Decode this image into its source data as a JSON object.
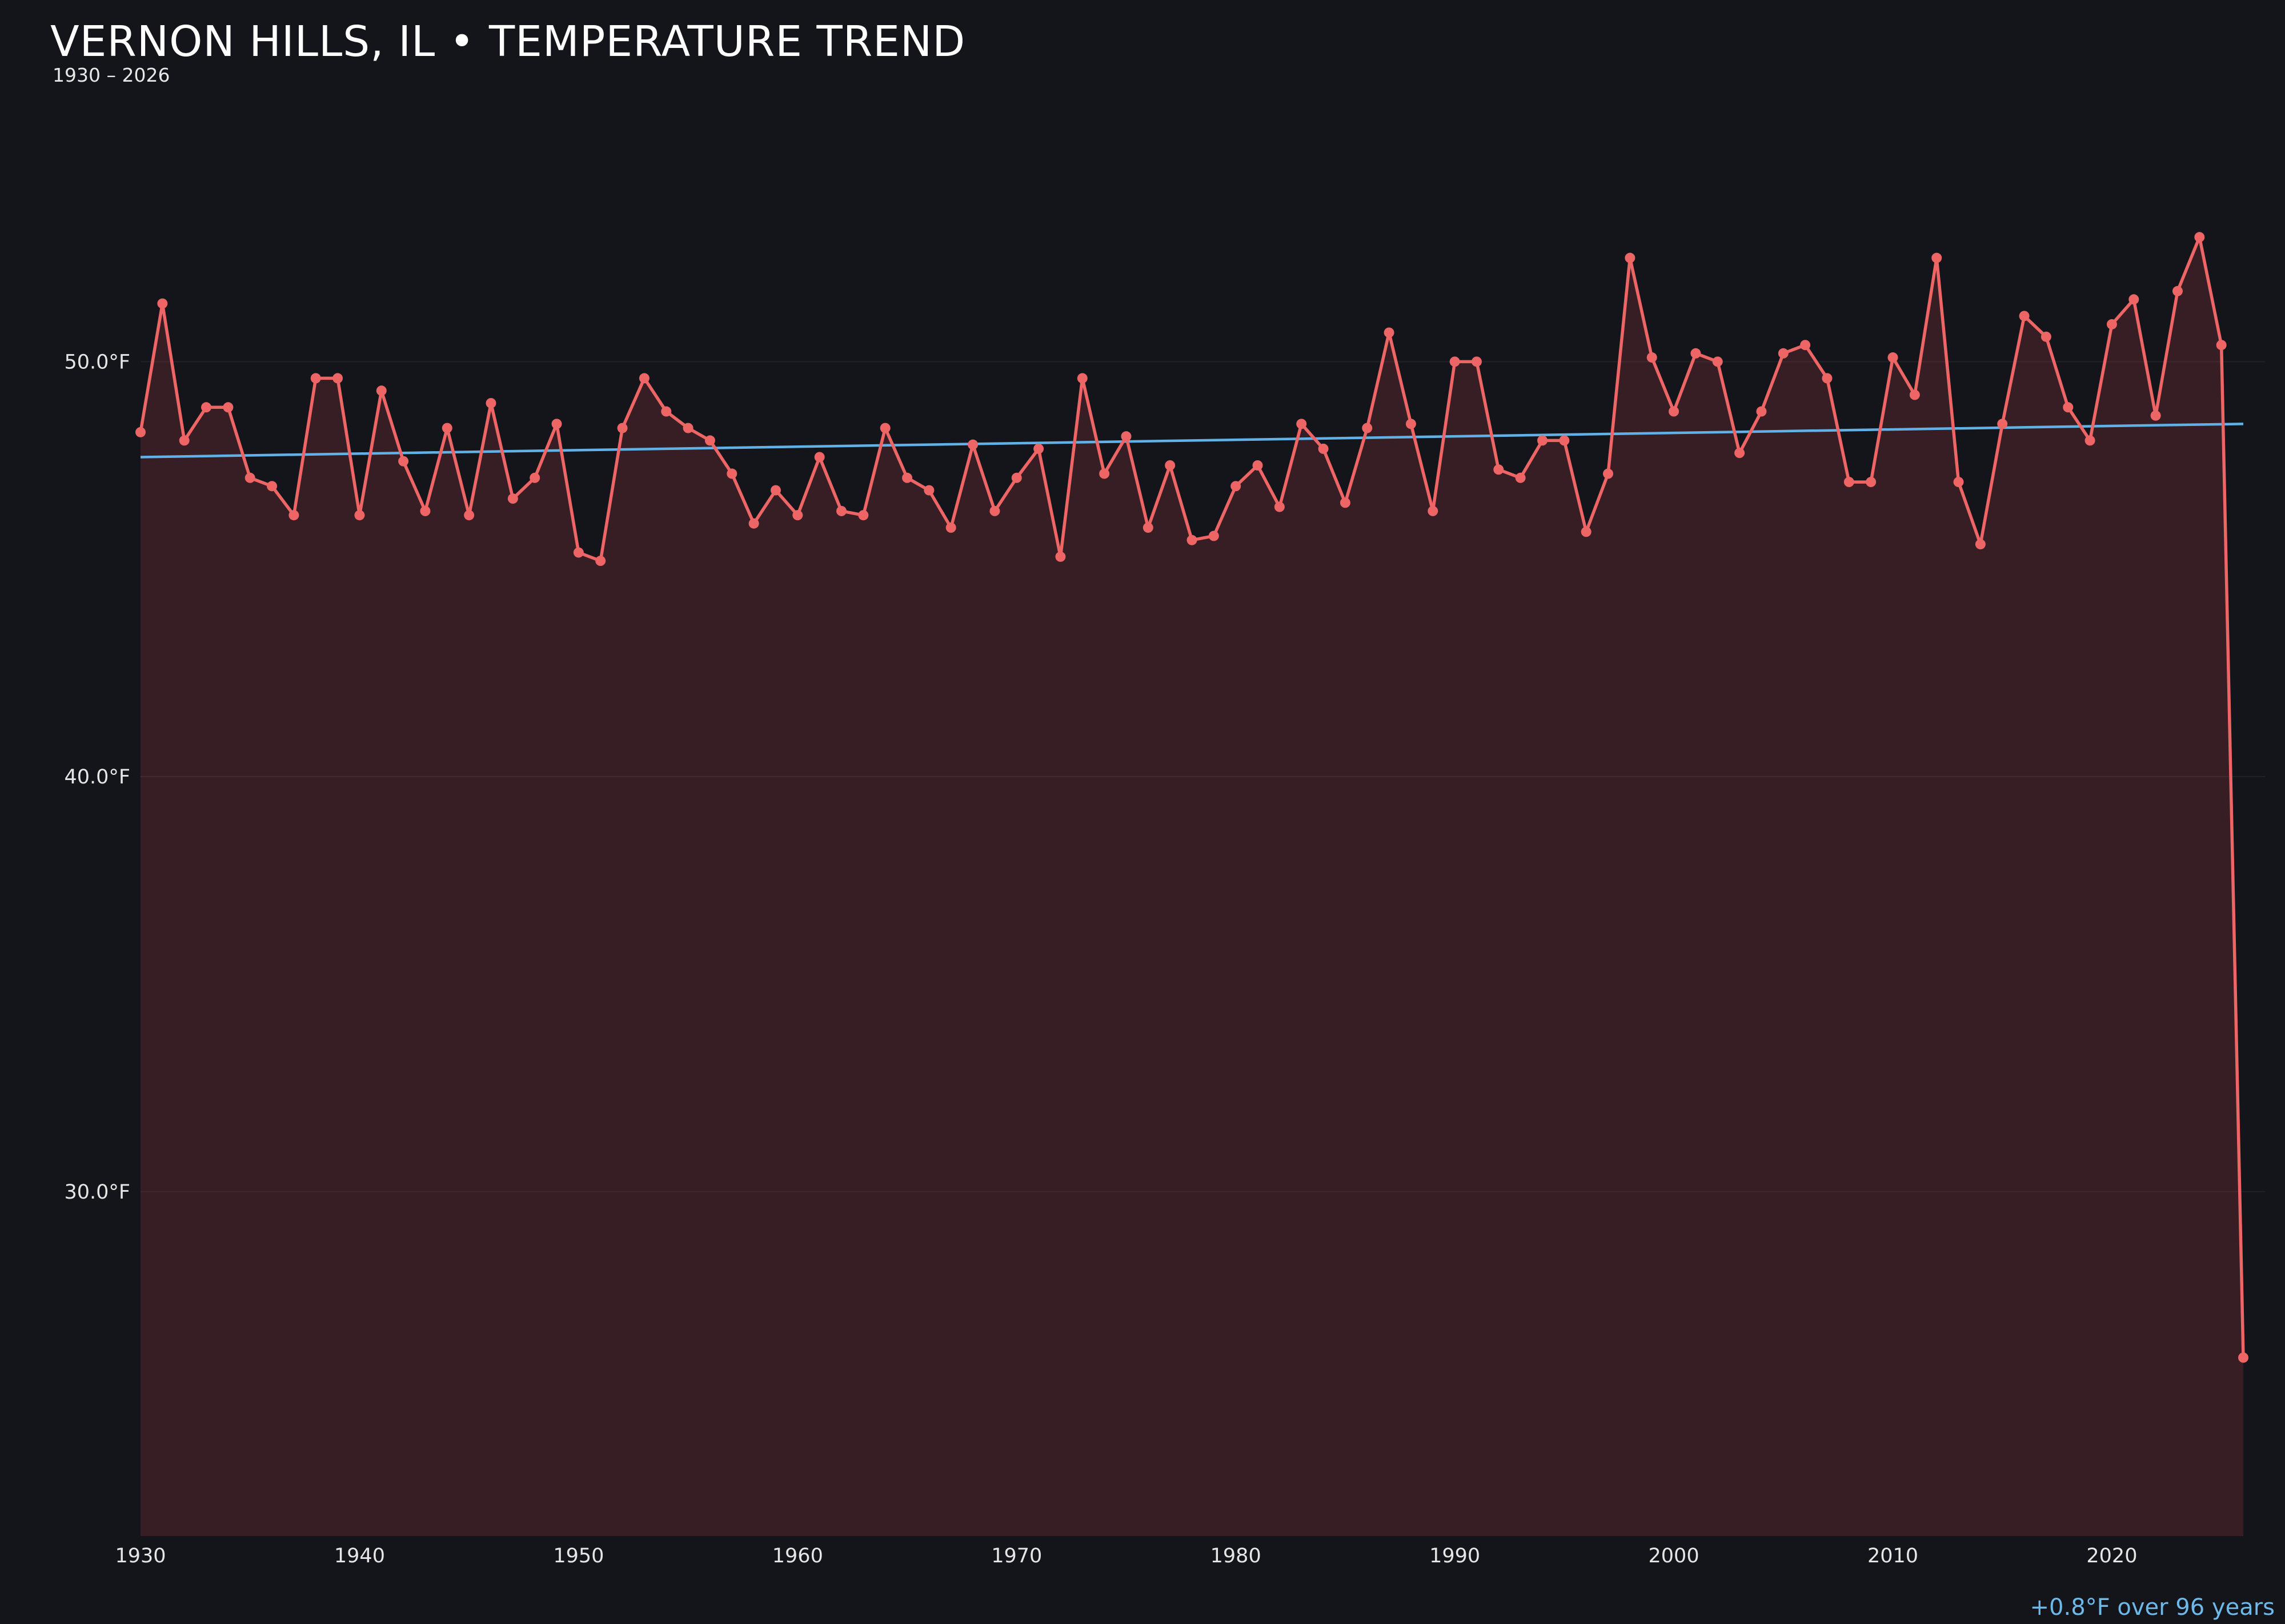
{
  "title": "VERNON HILLS, IL • TEMPERATURE TREND",
  "subtitle": "1930 – 2026",
  "annotation": "+0.8°F over 96 years",
  "colors": {
    "background": "#14141b",
    "line": "#ed6565",
    "marker": "#ed6565",
    "area_fill": "rgba(233,86,86,0.165)",
    "trend": "#62b1e6",
    "grid": "rgba(255,255,255,0.06)",
    "tick_text": "#e6e6e6",
    "title_text": "#ffffff",
    "annotation_text": "#6db9ea"
  },
  "chart_data": {
    "type": "line",
    "title": "VERNON HILLS, IL • TEMPERATURE TREND",
    "subtitle": "1930 – 2026",
    "xlabel": "",
    "ylabel": "",
    "xlim": [
      1930,
      2026
    ],
    "ylim": [
      21.7,
      56.1
    ],
    "grid": "horizontal-only",
    "legend": "none",
    "x_ticks": [
      1930,
      1940,
      1950,
      1960,
      1970,
      1980,
      1990,
      2000,
      2010,
      2020
    ],
    "y_ticks": [
      50,
      40,
      30
    ],
    "y_tick_labels": [
      "50.0°F",
      "40.0°F",
      "30.0°F"
    ],
    "series_name": "Annual mean temperature (°F)",
    "points": [
      [
        1930,
        48.3
      ],
      [
        1931,
        51.4
      ],
      [
        1932,
        48.1
      ],
      [
        1933,
        48.9
      ],
      [
        1934,
        48.9
      ],
      [
        1935,
        47.2
      ],
      [
        1936,
        47.0
      ],
      [
        1937,
        46.3
      ],
      [
        1938,
        49.6
      ],
      [
        1939,
        49.6
      ],
      [
        1940,
        46.3
      ],
      [
        1941,
        49.3
      ],
      [
        1942,
        47.6
      ],
      [
        1943,
        46.4
      ],
      [
        1944,
        48.4
      ],
      [
        1945,
        46.3
      ],
      [
        1946,
        49.0
      ],
      [
        1947,
        46.7
      ],
      [
        1948,
        47.2
      ],
      [
        1949,
        48.5
      ],
      [
        1950,
        45.4
      ],
      [
        1951,
        45.2
      ],
      [
        1952,
        48.4
      ],
      [
        1953,
        49.6
      ],
      [
        1954,
        48.8
      ],
      [
        1955,
        48.4
      ],
      [
        1956,
        48.1
      ],
      [
        1957,
        47.3
      ],
      [
        1958,
        46.1
      ],
      [
        1959,
        46.9
      ],
      [
        1960,
        46.3
      ],
      [
        1961,
        47.7
      ],
      [
        1962,
        46.4
      ],
      [
        1963,
        46.3
      ],
      [
        1964,
        48.4
      ],
      [
        1965,
        47.2
      ],
      [
        1966,
        46.9
      ],
      [
        1967,
        46.0
      ],
      [
        1968,
        48.0
      ],
      [
        1969,
        46.4
      ],
      [
        1970,
        47.2
      ],
      [
        1971,
        47.9
      ],
      [
        1972,
        45.3
      ],
      [
        1973,
        49.6
      ],
      [
        1974,
        47.3
      ],
      [
        1975,
        48.2
      ],
      [
        1976,
        46.0
      ],
      [
        1977,
        47.5
      ],
      [
        1978,
        45.7
      ],
      [
        1979,
        45.8
      ],
      [
        1980,
        47.0
      ],
      [
        1981,
        47.5
      ],
      [
        1982,
        46.5
      ],
      [
        1983,
        48.5
      ],
      [
        1984,
        47.9
      ],
      [
        1985,
        46.6
      ],
      [
        1986,
        48.4
      ],
      [
        1987,
        50.7
      ],
      [
        1988,
        48.5
      ],
      [
        1989,
        46.4
      ],
      [
        1990,
        50.0
      ],
      [
        1991,
        50.0
      ],
      [
        1992,
        47.4
      ],
      [
        1993,
        47.2
      ],
      [
        1994,
        48.1
      ],
      [
        1995,
        48.1
      ],
      [
        1996,
        45.9
      ],
      [
        1997,
        47.3
      ],
      [
        1998,
        52.5
      ],
      [
        1999,
        50.1
      ],
      [
        2000,
        48.8
      ],
      [
        2001,
        50.2
      ],
      [
        2002,
        50.0
      ],
      [
        2003,
        47.8
      ],
      [
        2004,
        48.8
      ],
      [
        2005,
        50.2
      ],
      [
        2006,
        50.4
      ],
      [
        2007,
        49.6
      ],
      [
        2008,
        47.1
      ],
      [
        2009,
        47.1
      ],
      [
        2010,
        50.1
      ],
      [
        2011,
        49.2
      ],
      [
        2012,
        52.5
      ],
      [
        2013,
        47.1
      ],
      [
        2014,
        45.6
      ],
      [
        2015,
        48.5
      ],
      [
        2016,
        51.1
      ],
      [
        2017,
        50.6
      ],
      [
        2018,
        48.9
      ],
      [
        2019,
        48.1
      ],
      [
        2020,
        50.9
      ],
      [
        2021,
        51.5
      ],
      [
        2022,
        48.7
      ],
      [
        2023,
        51.7
      ],
      [
        2024,
        53.0
      ],
      [
        2025,
        50.4
      ],
      [
        2026,
        26.0
      ]
    ],
    "trend_line": {
      "x_start": 1930,
      "y_start": 47.7,
      "x_end": 2026,
      "y_end": 48.5,
      "change": "+0.8°F",
      "span_years": 96
    }
  }
}
